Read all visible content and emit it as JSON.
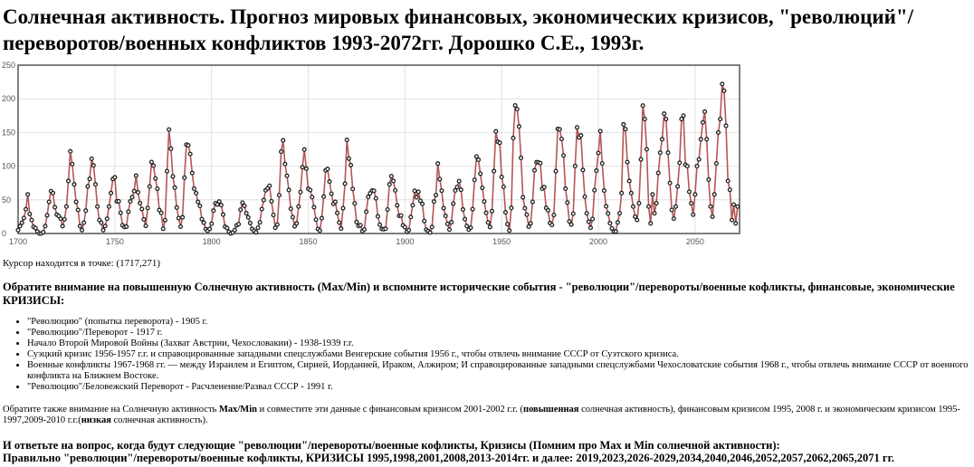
{
  "title_lines": [
    "Солнечная активность. Прогноз мировых финансовых, экономических кризисов, \"революций\"/",
    "переворотов/военных конфликтов 1993-2072гг. Дорошко С.Е., 1993г."
  ],
  "chart_data": {
    "type": "line",
    "x": [
      1700,
      1701,
      1702,
      1703,
      1704,
      1705,
      1706,
      1707,
      1708,
      1709,
      1710,
      1711,
      1712,
      1713,
      1714,
      1715,
      1716,
      1717,
      1718,
      1719,
      1720,
      1721,
      1722,
      1723,
      1724,
      1725,
      1726,
      1727,
      1728,
      1729,
      1730,
      1731,
      1732,
      1733,
      1734,
      1735,
      1736,
      1737,
      1738,
      1739,
      1740,
      1741,
      1742,
      1743,
      1744,
      1745,
      1746,
      1747,
      1748,
      1749,
      1750,
      1751,
      1752,
      1753,
      1754,
      1755,
      1756,
      1757,
      1758,
      1759,
      1760,
      1761,
      1762,
      1763,
      1764,
      1765,
      1766,
      1767,
      1768,
      1769,
      1770,
      1771,
      1772,
      1773,
      1774,
      1775,
      1776,
      1777,
      1778,
      1779,
      1780,
      1781,
      1782,
      1783,
      1784,
      1785,
      1786,
      1787,
      1788,
      1789,
      1790,
      1791,
      1792,
      1793,
      1794,
      1795,
      1796,
      1797,
      1798,
      1799,
      1800,
      1801,
      1802,
      1803,
      1804,
      1805,
      1806,
      1807,
      1808,
      1809,
      1810,
      1811,
      1812,
      1813,
      1814,
      1815,
      1816,
      1817,
      1818,
      1819,
      1820,
      1821,
      1822,
      1823,
      1824,
      1825,
      1826,
      1827,
      1828,
      1829,
      1830,
      1831,
      1832,
      1833,
      1834,
      1835,
      1836,
      1837,
      1838,
      1839,
      1840,
      1841,
      1842,
      1843,
      1844,
      1845,
      1846,
      1847,
      1848,
      1849,
      1850,
      1851,
      1852,
      1853,
      1854,
      1855,
      1856,
      1857,
      1858,
      1859,
      1860,
      1861,
      1862,
      1863,
      1864,
      1865,
      1866,
      1867,
      1868,
      1869,
      1870,
      1871,
      1872,
      1873,
      1874,
      1875,
      1876,
      1877,
      1878,
      1879,
      1880,
      1881,
      1882,
      1883,
      1884,
      1885,
      1886,
      1887,
      1888,
      1889,
      1890,
      1891,
      1892,
      1893,
      1894,
      1895,
      1896,
      1897,
      1898,
      1899,
      1900,
      1901,
      1902,
      1903,
      1904,
      1905,
      1906,
      1907,
      1908,
      1909,
      1910,
      1911,
      1912,
      1913,
      1914,
      1915,
      1916,
      1917,
      1918,
      1919,
      1920,
      1921,
      1922,
      1923,
      1924,
      1925,
      1926,
      1927,
      1928,
      1929,
      1930,
      1931,
      1932,
      1933,
      1934,
      1935,
      1936,
      1937,
      1938,
      1939,
      1940,
      1941,
      1942,
      1943,
      1944,
      1945,
      1946,
      1947,
      1948,
      1949,
      1950,
      1951,
      1952,
      1953,
      1954,
      1955,
      1956,
      1957,
      1958,
      1959,
      1960,
      1961,
      1962,
      1963,
      1964,
      1965,
      1966,
      1967,
      1968,
      1969,
      1970,
      1971,
      1972,
      1973,
      1974,
      1975,
      1976,
      1977,
      1978,
      1979,
      1980,
      1981,
      1982,
      1983,
      1984,
      1985,
      1986,
      1987,
      1988,
      1989,
      1990,
      1991,
      1992,
      1993,
      1994,
      1995,
      1996,
      1997,
      1998,
      1999,
      2000,
      2001,
      2002,
      2003,
      2004,
      2005,
      2006,
      2007,
      2008,
      2009,
      2010,
      2011,
      2012,
      2013,
      2014,
      2015,
      2016,
      2017,
      2018,
      2019,
      2020,
      2021,
      2022,
      2023,
      2024,
      2025,
      2026,
      2027,
      2028,
      2029,
      2030,
      2031,
      2032,
      2033,
      2034,
      2035,
      2036,
      2037,
      2038,
      2039,
      2040,
      2041,
      2042,
      2043,
      2044,
      2045,
      2046,
      2047,
      2048,
      2049,
      2050,
      2051,
      2052,
      2053,
      2054,
      2055,
      2056,
      2057,
      2058,
      2059,
      2060,
      2061,
      2062,
      2063,
      2064,
      2065,
      2066,
      2067,
      2068,
      2069,
      2070,
      2071,
      2072
    ],
    "values": [
      5,
      11,
      16,
      23,
      36,
      58,
      29,
      20,
      10,
      8,
      3,
      0,
      0,
      2,
      11,
      27,
      47,
      63,
      60,
      39,
      28,
      26,
      22,
      11,
      21,
      40,
      78,
      122,
      103,
      73,
      47,
      35,
      11,
      5,
      16,
      34,
      70,
      81,
      111,
      101,
      73,
      40,
      20,
      16,
      5,
      11,
      22,
      40,
      60,
      80.9,
      83.4,
      47.7,
      47.8,
      30.7,
      12.2,
      9.6,
      10.2,
      32.4,
      47.6,
      54,
      62.9,
      85.9,
      61.2,
      45.1,
      36.4,
      20.9,
      11.4,
      37.8,
      69.8,
      106.1,
      100.8,
      81.6,
      66.5,
      34.8,
      30.6,
      7,
      19.8,
      92.5,
      154.4,
      125.9,
      84.8,
      68.1,
      38.5,
      22.8,
      10.2,
      24.1,
      82.9,
      132,
      130.9,
      118.1,
      89.9,
      66.6,
      60,
      46.9,
      41,
      21.3,
      16,
      6.4,
      4.1,
      6.8,
      14.5,
      34,
      45,
      43.1,
      47.5,
      42.2,
      28.1,
      10.1,
      8.1,
      2.5,
      0,
      1.4,
      5,
      12.2,
      13.9,
      35.4,
      45.8,
      41.1,
      30.1,
      23.9,
      15.6,
      6.6,
      4,
      1.8,
      8.5,
      16.6,
      36.3,
      49.6,
      64.2,
      67,
      70.9,
      47.8,
      27.5,
      8.5,
      13.2,
      56.9,
      121.5,
      138.3,
      103.2,
      85.7,
      64.6,
      36.7,
      24.2,
      10.7,
      15,
      40.1,
      61.5,
      98.5,
      124.7,
      96.3,
      66.6,
      64.5,
      54.1,
      39,
      20.6,
      6.7,
      4.3,
      22.7,
      54.8,
      93.8,
      95.8,
      77.2,
      59.1,
      44,
      47,
      30.5,
      16.3,
      7.3,
      37.6,
      74,
      139,
      111.2,
      101.6,
      66.2,
      44.7,
      17,
      11.3,
      12.4,
      3.4,
      6,
      32.3,
      54.3,
      59.7,
      63.7,
      63.5,
      52.2,
      25.4,
      13.1,
      6.8,
      6.3,
      7.1,
      35.6,
      73,
      85.1,
      78,
      64,
      41.8,
      26.2,
      26.7,
      12.1,
      9.5,
      2.7,
      5,
      24.4,
      42,
      63.5,
      53.8,
      62,
      48.5,
      43.9,
      18.6,
      5.7,
      3.6,
      1.4,
      9.6,
      47.4,
      57.1,
      103.9,
      80.6,
      63.6,
      37.6,
      26.1,
      14.2,
      5.8,
      16.7,
      44.3,
      63.9,
      69,
      77.8,
      64.9,
      35.7,
      21.2,
      11.1,
      5.7,
      8.7,
      36.1,
      79.7,
      114.4,
      109.6,
      88.8,
      67.8,
      47.5,
      30.6,
      16.3,
      9.6,
      33.2,
      92.6,
      151.6,
      136.3,
      134.7,
      83.9,
      69.4,
      31.5,
      13.9,
      4.4,
      38,
      141.7,
      190.2,
      184.8,
      159,
      112.3,
      53.9,
      37.5,
      27.9,
      10.2,
      15.1,
      47,
      93.8,
      105.9,
      105.5,
      104.5,
      66.6,
      68.9,
      38,
      34.5,
      15.5,
      12.6,
      27.5,
      92.5,
      155.4,
      154.6,
      140.4,
      115.9,
      66.6,
      45.9,
      17.9,
      13.4,
      29.4,
      100.2,
      157.6,
      142.6,
      145.7,
      94.3,
      54.6,
      29.9,
      17.5,
      8.6,
      21.5,
      64.3,
      93.3,
      119.6,
      152,
      104,
      63.7,
      40.4,
      29.8,
      15.2,
      7.5,
      2.9,
      3.1,
      16.5,
      30,
      60,
      162,
      155,
      106,
      78,
      60,
      40,
      25,
      20,
      45,
      110,
      190,
      170,
      125,
      40,
      15,
      58,
      30,
      45,
      90,
      120,
      140,
      178,
      170,
      120,
      75,
      35,
      22,
      40,
      70,
      105,
      170,
      175,
      102,
      100,
      62,
      45,
      28,
      58,
      100,
      110,
      140,
      165,
      181,
      140,
      80,
      40,
      25,
      58,
      104,
      150,
      170,
      222,
      212,
      160,
      78,
      65,
      20,
      43,
      15,
      40
    ],
    "color": "#b55656",
    "marker_color": "#222222",
    "xlim": [
      1700,
      2073
    ],
    "xticks": [
      1700,
      1750,
      1800,
      1850,
      1900,
      1950,
      2000,
      2050
    ],
    "ylim": [
      0,
      250
    ],
    "yticks": [
      0,
      50,
      100,
      150,
      200,
      250
    ],
    "grid": true
  },
  "cursor": "Курсор находится в точке: (1717,271)",
  "heading": "Обратите внимание на повышенную Солнечную активность (Max/Min) и вспомните исторические события - \"революции\"/перевороты/военные кофликты, финансовые, экономические КРИЗИСЫ:",
  "events": [
    "\"Революцию\" (попытка переворота) - 1905 г.",
    "\"Революцию\"/Переворот - 1917 г.",
    "Начало Второй Мировой Войны (Захват Австрии, Чехословакии) - 1938-1939 г.г.",
    "Суэцкий кризис 1956-1957 г.г. и справоцированные западными спецслужбами Венгерские события 1956 г., чтобы отвлечь внимание СССР от Суэтского кризиса.",
    "Военные конфликты 1967-1968 гг. — между Израилем и Египтом, Сирией, Иорданией, Ираком, Алжиром; И справоцированные западными спецслужбами Чехословатские события 1968 г., чтобы отвлечь внимание СССР от военного конфликта на Ближнем Востоке.",
    "\"Революцию\"/Беловежский Переворот - Расчленение/Развал СССР - 1991 г."
  ],
  "paragraph": [
    {
      "text": "Обратите также внимание на Солнечную активность ",
      "bold": false
    },
    {
      "text": "Max/Min",
      "bold": true
    },
    {
      "text": " и совместите эти данные с финансовым кризисом 2001-2002 г.г. (",
      "bold": false
    },
    {
      "text": "повышенная",
      "bold": true
    },
    {
      "text": " солнечная активность), финансовым кризисом 1995, 2008 г. и экономическим кризисом 1995-1997,2009-2010 г.г.(",
      "bold": false
    },
    {
      "text": "низкая",
      "bold": true
    },
    {
      "text": " солнечная активность).",
      "bold": false
    }
  ],
  "question": "И ответьте на вопрос, когда будут следующие \"революции\"/перевороты/военные кофликты, Кризисы (Помним про Max и Min солнечной активности):",
  "answer": "Правильно \"революции\"/перевороты/военные кофликты, КРИЗИСЫ 1995,1998,2001,2008,2013-2014гг. и далее: 2019,2023,2026-2029,2034,2040,2046,2052,2057,2062,2065,2071 гг."
}
